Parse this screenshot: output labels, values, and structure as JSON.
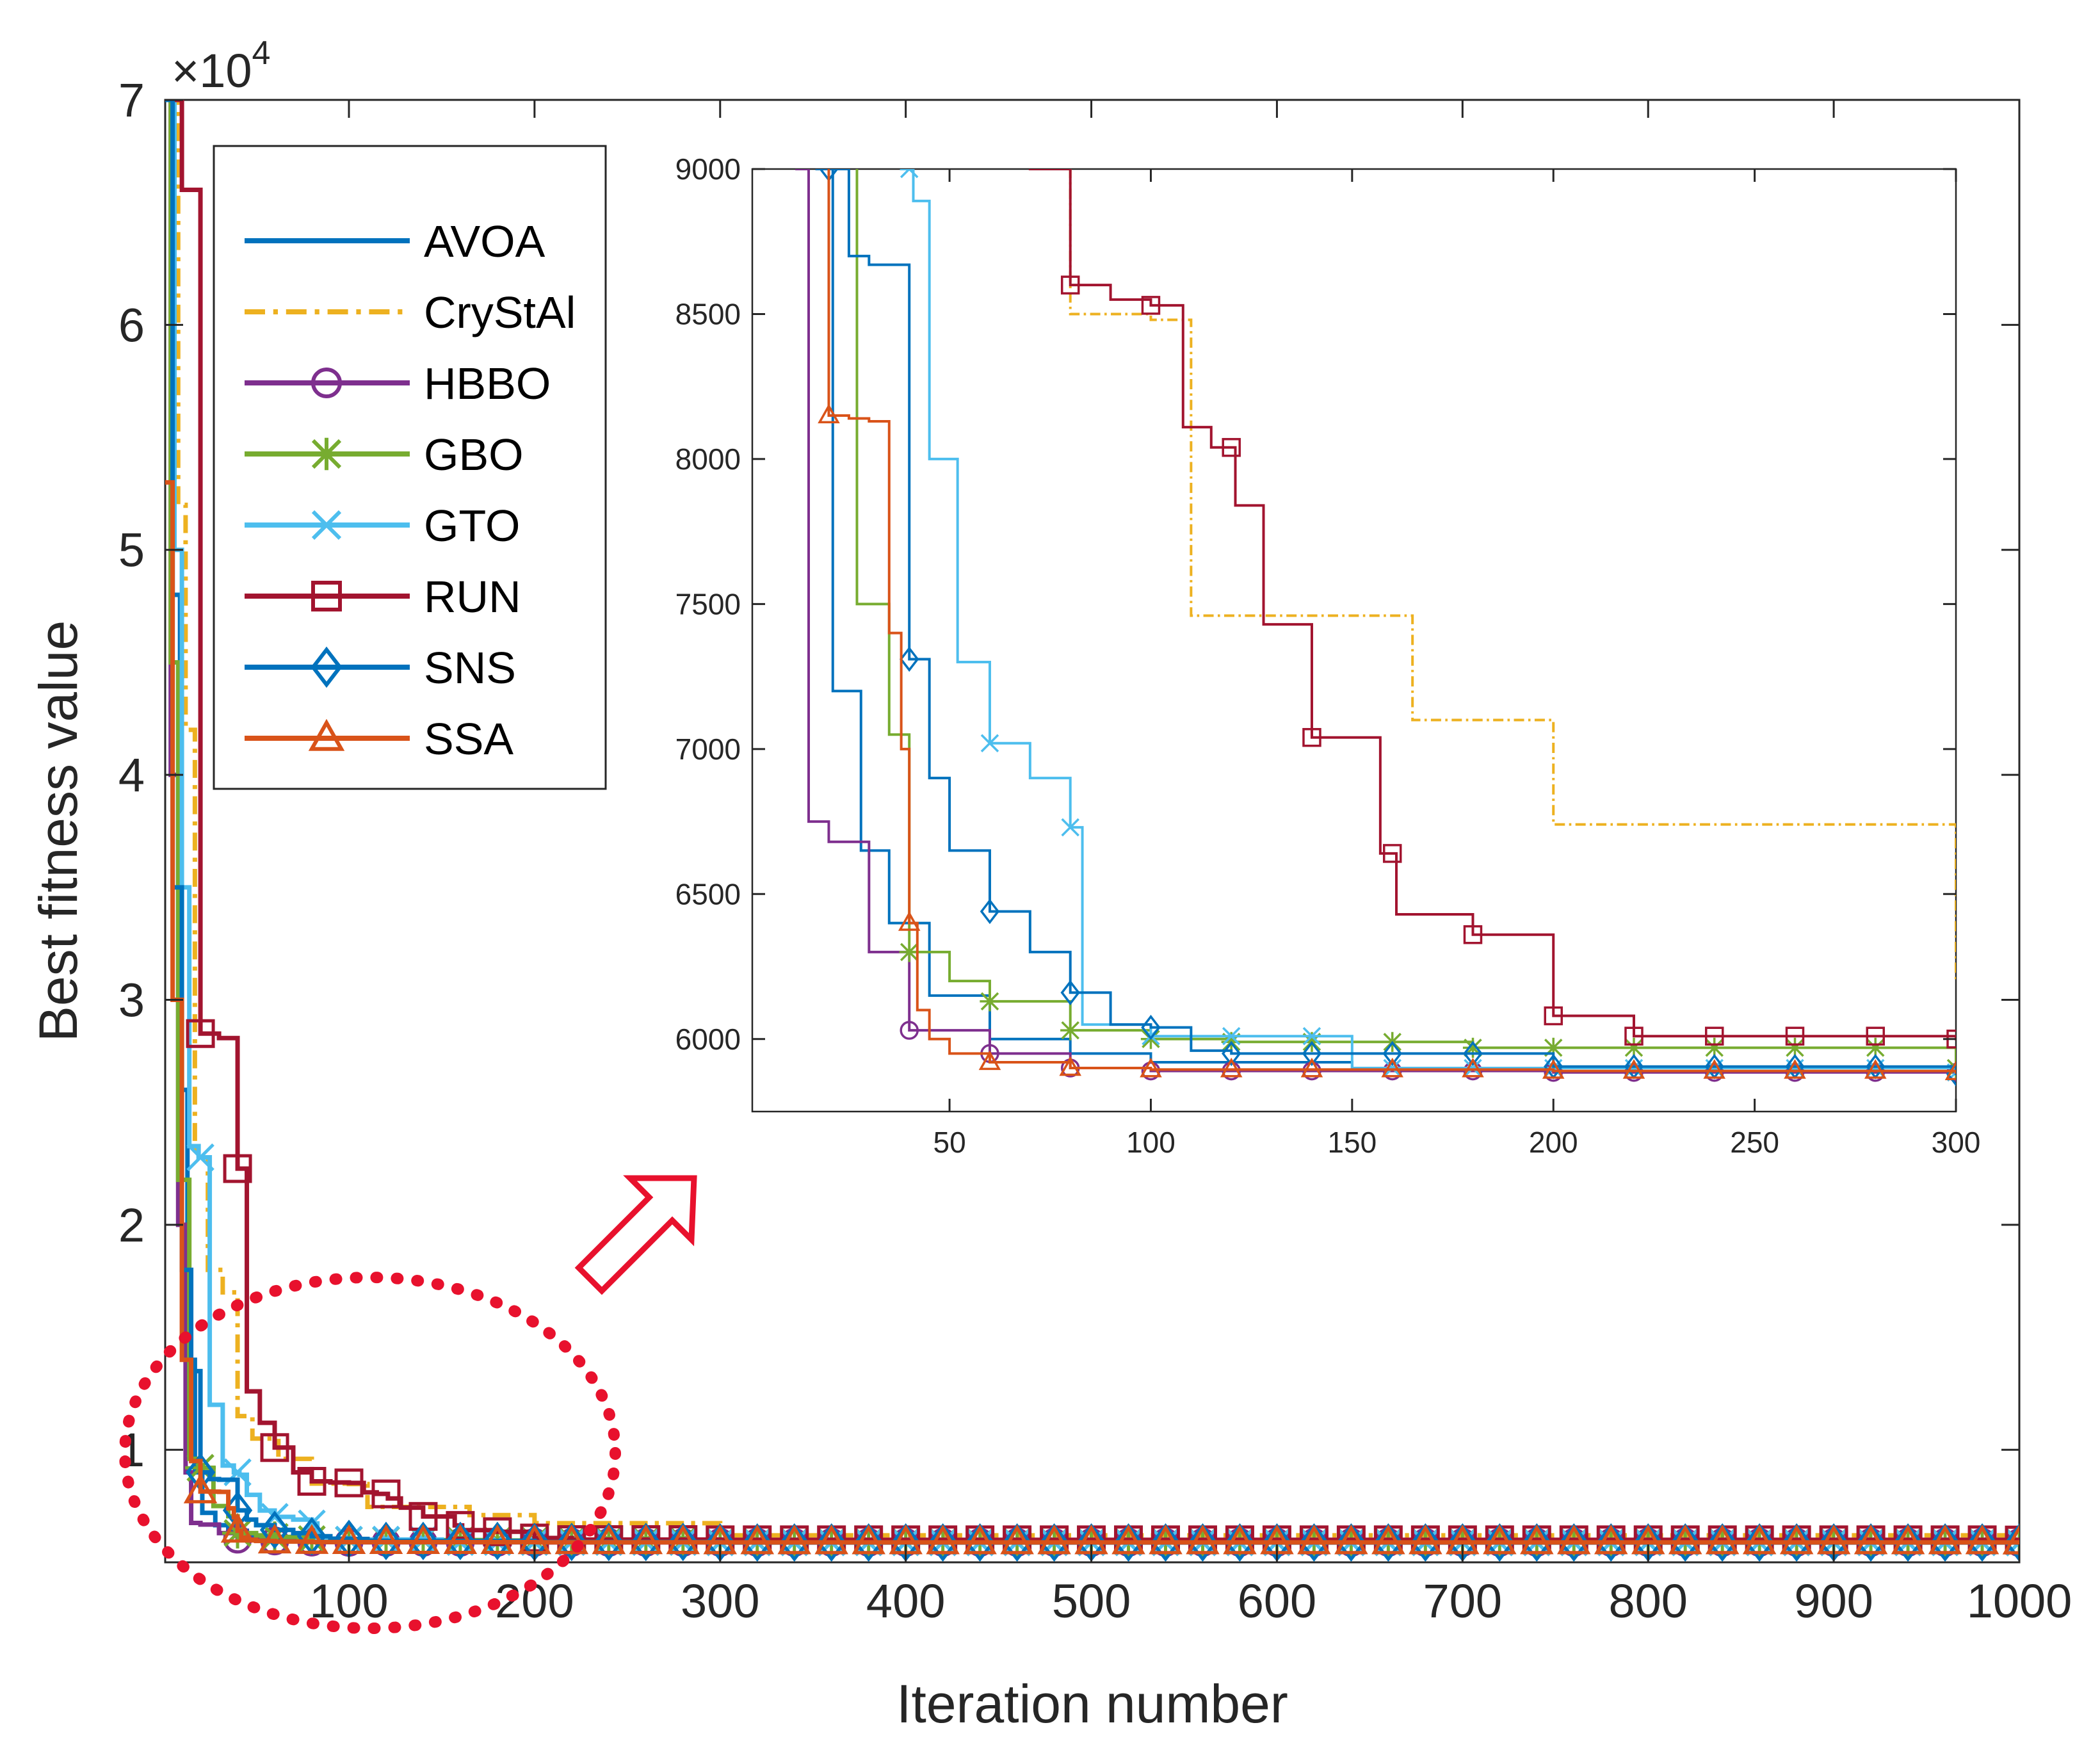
{
  "chart_data": [
    {
      "type": "line",
      "role": "main",
      "xlabel": "Iteration number",
      "ylabel": "Best fitness value",
      "y_exponent_label": "×10",
      "y_exponent_power": "4",
      "xlim": [
        1,
        1000
      ],
      "ylim": [
        5000,
        70000
      ],
      "xticks": [
        100,
        200,
        300,
        400,
        500,
        600,
        700,
        800,
        900,
        1000
      ],
      "xtick_labels": [
        "100",
        "200",
        "300",
        "400",
        "500",
        "600",
        "700",
        "800",
        "900",
        "1000"
      ],
      "yticks": [
        10000,
        20000,
        30000,
        40000,
        50000,
        60000,
        70000
      ],
      "ytick_labels": [
        "1",
        "2",
        "3",
        "4",
        "5",
        "6",
        "7"
      ],
      "legend": [
        "AVOA",
        "CryStAl",
        "HBBO",
        "GBO",
        "GTO",
        "RUN",
        "SNS",
        "SSA"
      ],
      "legend_position": "top-left",
      "series": [
        {
          "name": "AVOA",
          "color": "#0072BD",
          "dash": "solid",
          "marker": "none",
          "x": [
            1,
            5,
            9,
            13,
            17,
            21,
            28,
            35,
            45,
            60,
            80,
            100,
            150,
            300,
            1000
          ],
          "y": [
            70000,
            48000,
            26000,
            14000,
            9000,
            7200,
            6650,
            6400,
            6150,
            6000,
            5950,
            5920,
            5900,
            5890,
            5885
          ]
        },
        {
          "name": "CryStAl",
          "color": "#EDB120",
          "dash": "dashdot",
          "marker": "none",
          "x": [
            1,
            8,
            12,
            17,
            24,
            32,
            40,
            48,
            62,
            80,
            100,
            110,
            140,
            165,
            200,
            300,
            1000
          ],
          "y": [
            70000,
            52000,
            42000,
            23000,
            18000,
            17000,
            11500,
            10500,
            9600,
            8500,
            8480,
            7460,
            7460,
            7100,
            6740,
            6200,
            6150
          ]
        },
        {
          "name": "HBBO",
          "color": "#7E2F8E",
          "dash": "solid",
          "marker": "circle",
          "x": [
            1,
            4,
            8,
            12,
            15,
            20,
            30,
            40,
            60,
            80,
            100,
            200,
            1000
          ],
          "y": [
            70000,
            40000,
            20000,
            9000,
            6750,
            6680,
            6300,
            6030,
            5950,
            5900,
            5890,
            5885,
            5880
          ]
        },
        {
          "name": "GBO",
          "color": "#77AC30",
          "dash": "solid",
          "marker": "star",
          "x": [
            1,
            4,
            8,
            14,
            20,
            27,
            35,
            40,
            50,
            60,
            80,
            100,
            120,
            180,
            300,
            500,
            1000
          ],
          "y": [
            70000,
            45000,
            22000,
            9600,
            9200,
            7500,
            7050,
            6300,
            6200,
            6130,
            6030,
            6000,
            5990,
            5970,
            5900,
            5895,
            5890
          ]
        },
        {
          "name": "GTO",
          "color": "#4DBEEE",
          "dash": "solid",
          "marker": "x",
          "x": [
            1,
            6,
            10,
            14,
            19,
            25,
            32,
            38,
            41,
            45,
            52,
            60,
            70,
            80,
            83,
            100,
            150,
            300,
            1000
          ],
          "y": [
            70000,
            50000,
            35000,
            23500,
            23000,
            12000,
            9300,
            9000,
            8890,
            8000,
            7300,
            7020,
            6900,
            6730,
            6050,
            6010,
            5900,
            5885,
            5880
          ]
        },
        {
          "name": "RUN",
          "color": "#A2142F",
          "dash": "solid",
          "marker": "square",
          "x": [
            1,
            10,
            20,
            30,
            40,
            45,
            52,
            60,
            70,
            80,
            90,
            100,
            108,
            115,
            121,
            128,
            140,
            157,
            161,
            180,
            200,
            220,
            300,
            1000
          ],
          "y": [
            70000,
            66000,
            28500,
            28300,
            22500,
            12600,
            11200,
            10100,
            9000,
            8600,
            8550,
            8530,
            8110,
            8040,
            7840,
            7430,
            7040,
            6640,
            6430,
            6360,
            6080,
            6010,
            6000,
            5990
          ]
        },
        {
          "name": "SNS",
          "color": "#0072BD",
          "dash": "solid",
          "marker": "diamond",
          "x": [
            1,
            5,
            10,
            15,
            20,
            25,
            30,
            40,
            45,
            50,
            60,
            70,
            80,
            90,
            100,
            110,
            120,
            200,
            300,
            1000
          ],
          "y": [
            70000,
            35000,
            18000,
            13500,
            9000,
            8700,
            8670,
            7310,
            6900,
            6650,
            6440,
            6300,
            6160,
            6050,
            6040,
            5960,
            5950,
            5905,
            5880,
            5875
          ]
        },
        {
          "name": "SSA",
          "color": "#D95319",
          "dash": "solid",
          "marker": "triangle",
          "x": [
            1,
            5,
            10,
            15,
            20,
            25,
            30,
            35,
            38,
            40,
            42,
            45,
            50,
            60,
            80,
            100,
            200,
            300,
            1000
          ],
          "y": [
            53000,
            30000,
            14000,
            9500,
            8150,
            8140,
            8130,
            7400,
            7000,
            6400,
            6100,
            6000,
            5950,
            5920,
            5900,
            5895,
            5890,
            5885,
            5880
          ]
        }
      ]
    },
    {
      "type": "line",
      "role": "inset-zoom",
      "xlim": [
        1,
        300
      ],
      "ylim": [
        5750,
        9000
      ],
      "xticks": [
        50,
        100,
        150,
        200,
        250,
        300
      ],
      "xtick_labels": [
        "50",
        "100",
        "150",
        "200",
        "250",
        "300"
      ],
      "yticks": [
        6000,
        6500,
        7000,
        7500,
        8000,
        8500,
        9000
      ],
      "ytick_labels": [
        "6000",
        "6500",
        "7000",
        "7500",
        "8000",
        "8500",
        "9000"
      ],
      "series_ref": "main"
    }
  ],
  "annotations": {
    "zoom_ellipse_color": "#E8112D",
    "arrow_color": "#E8112D"
  }
}
